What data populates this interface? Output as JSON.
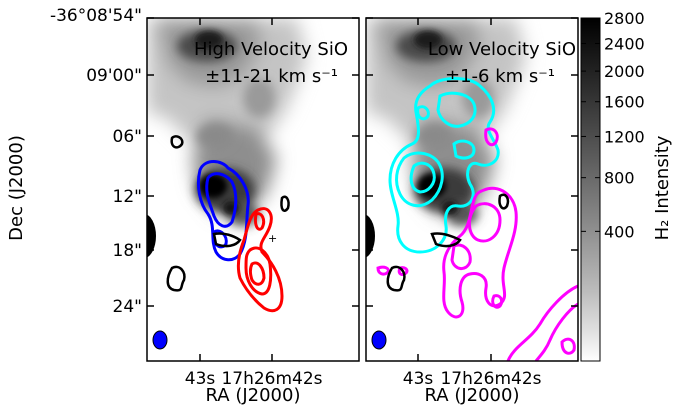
{
  "chart_data": [
    {
      "type": "heatmap",
      "panel": "left",
      "title": "High Velocity SiO",
      "subtitle": "±11-21 km s⁻¹",
      "xlabel": "RA (J2000)",
      "ylabel": "Dec (J2000)",
      "x_ticks": [
        "43s",
        "17h26m42s"
      ],
      "y_ticks": [
        "-36°08'54\"",
        "09'00\"",
        "06\"",
        "12\"",
        "18\"",
        "24\""
      ],
      "contour_series": [
        {
          "color": "#0000ff",
          "meaning": "blueshifted"
        },
        {
          "color": "#ff0000",
          "meaning": "redshifted"
        },
        {
          "color": "#000000",
          "meaning": "reference"
        }
      ],
      "beam_color": "#0000ff"
    },
    {
      "type": "heatmap",
      "panel": "right",
      "title": "Low Velocity SiO",
      "subtitle": "±1-6 km s⁻¹",
      "xlabel": "RA (J2000)",
      "x_ticks": [
        "43s",
        "17h26m42s"
      ],
      "contour_series": [
        {
          "color": "#00ffff",
          "meaning": "blueshifted"
        },
        {
          "color": "#ff00ff",
          "meaning": "redshifted"
        },
        {
          "color": "#000000",
          "meaning": "reference"
        }
      ],
      "beam_color": "#0000ff"
    }
  ],
  "colorbar": {
    "label": "H₂ Intensity",
    "ticks": [
      "2800",
      "2400",
      "2000",
      "1600",
      "1200",
      "800",
      "400"
    ],
    "tick_values": [
      2800,
      2400,
      2000,
      1600,
      1200,
      800,
      400
    ],
    "range": [
      0,
      2800
    ],
    "colormap": "gray_r (sqrt stretch)"
  }
}
